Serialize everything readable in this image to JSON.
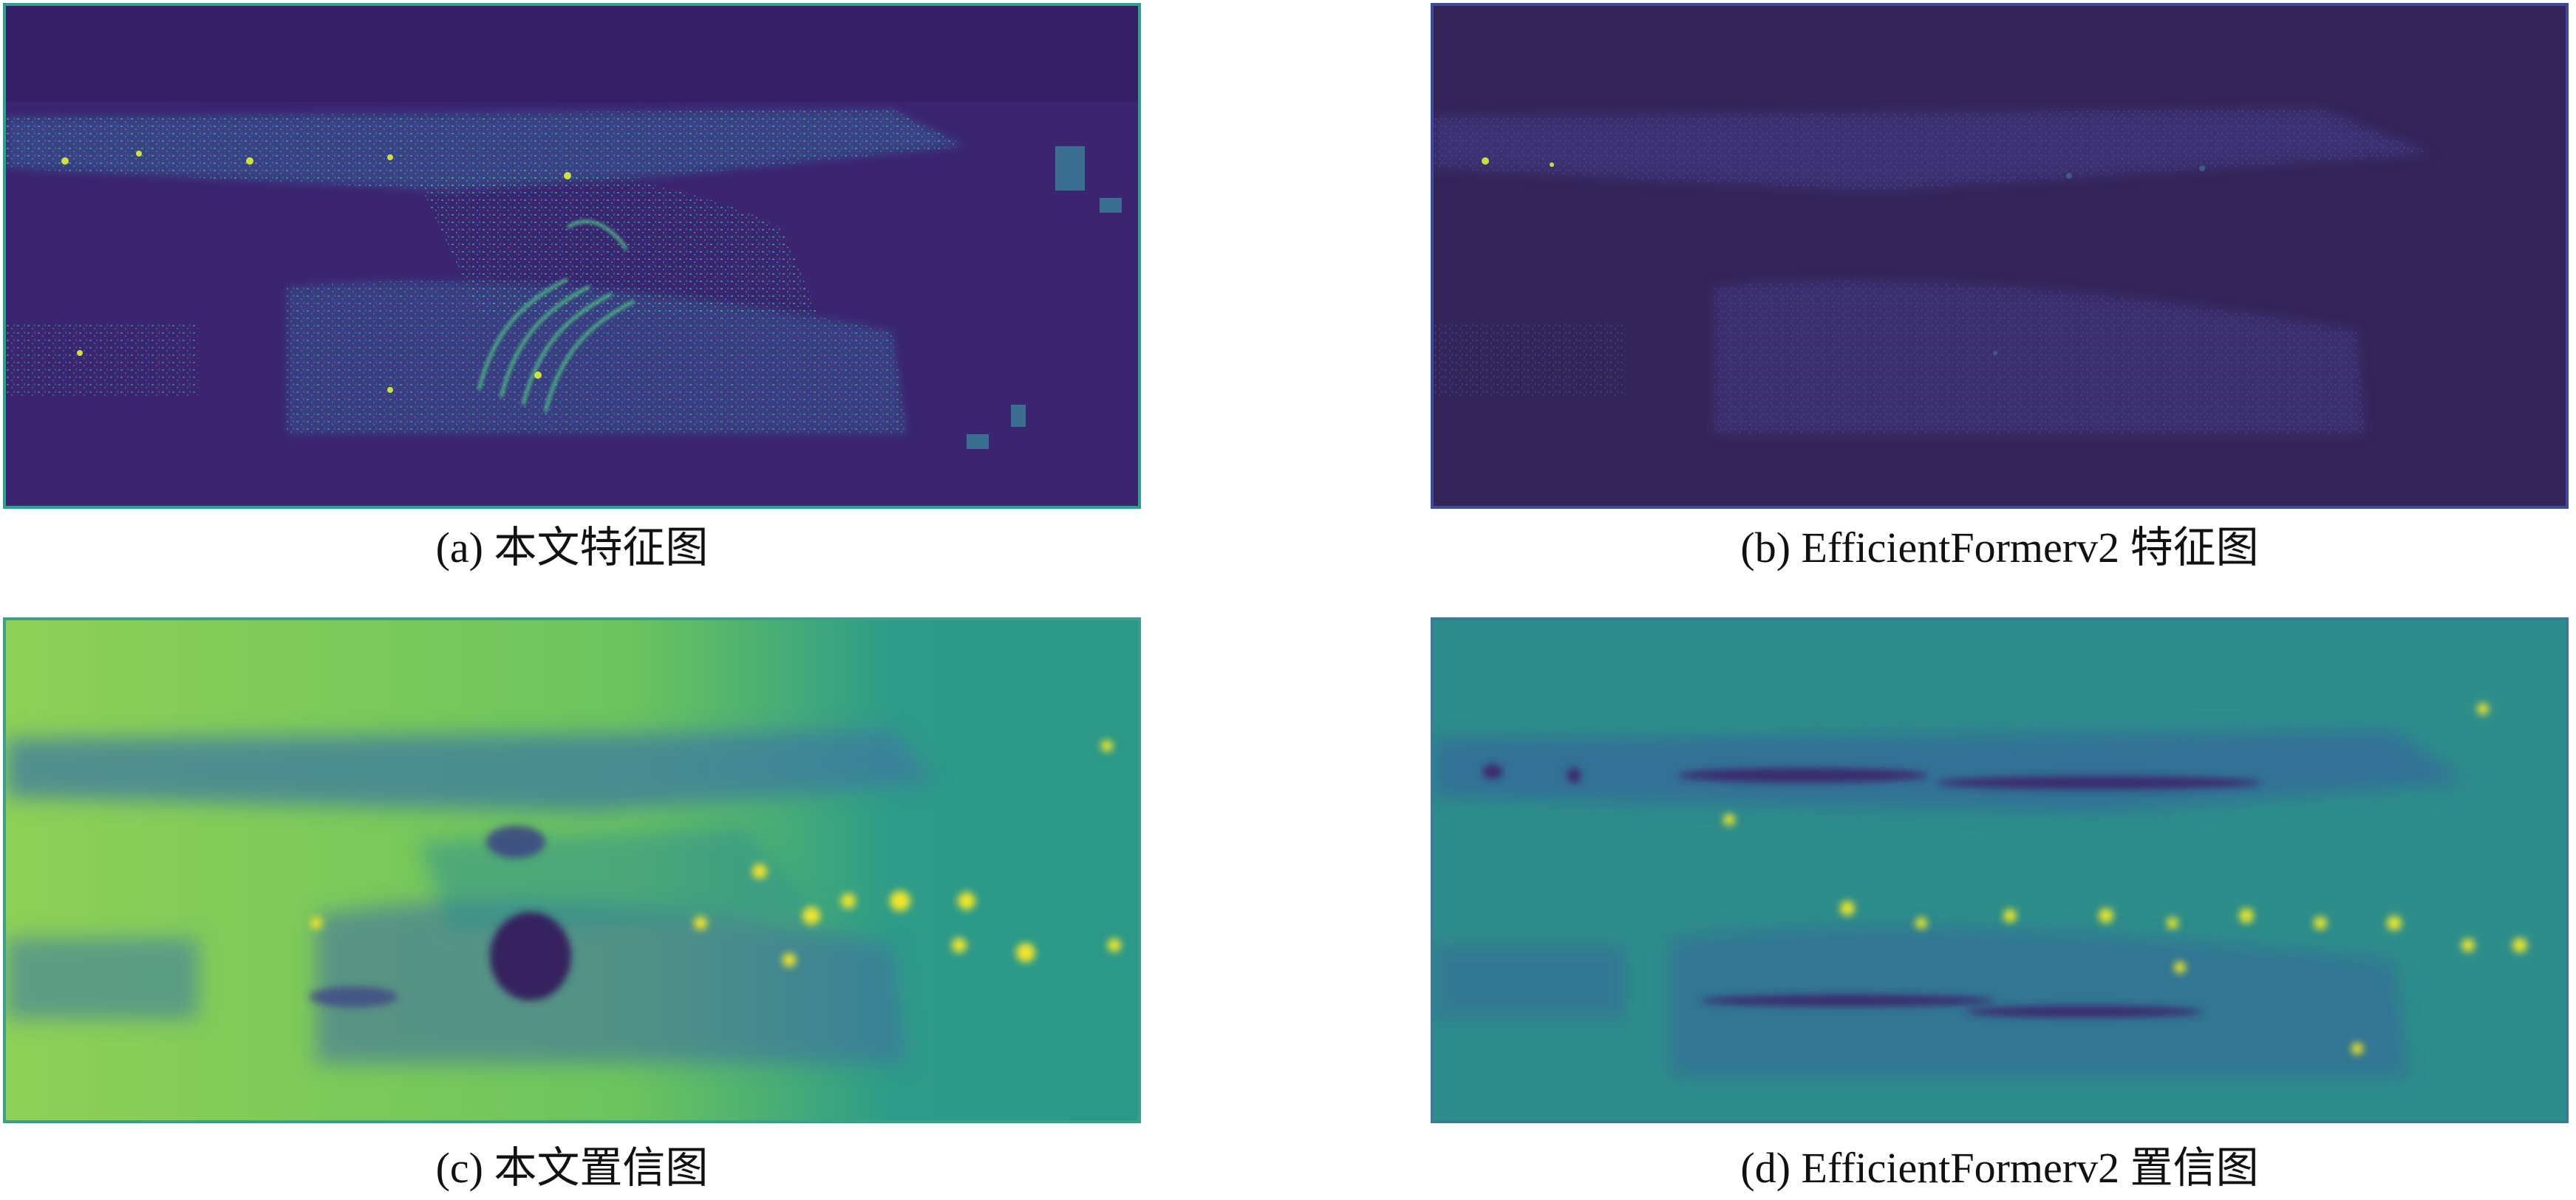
{
  "figure": {
    "panels": [
      {
        "id": "a",
        "caption": "(a)  本文特征图",
        "colormap": "viridis",
        "base_color": "#3b2470",
        "accent_color": "#35b58a",
        "highlight_color": "#cfe13a"
      },
      {
        "id": "b",
        "caption": "(b)  EfficientFormerv2 特征图",
        "colormap": "viridis",
        "base_color": "#342559",
        "accent_color": "#4b3c8e",
        "highlight_color": "#c8e03a"
      },
      {
        "id": "c",
        "caption": "(c)  本文置信图",
        "colormap": "viridis",
        "base_color": "#7bc860",
        "accent_color": "#3f6f9a",
        "highlight_color": "#f2e52a"
      },
      {
        "id": "d",
        "caption": "(d)  EfficientFormerv2 置信图",
        "colormap": "viridis",
        "base_color": "#2f8f8a",
        "accent_color": "#3a2f72",
        "highlight_color": "#e8e52a"
      }
    ]
  }
}
